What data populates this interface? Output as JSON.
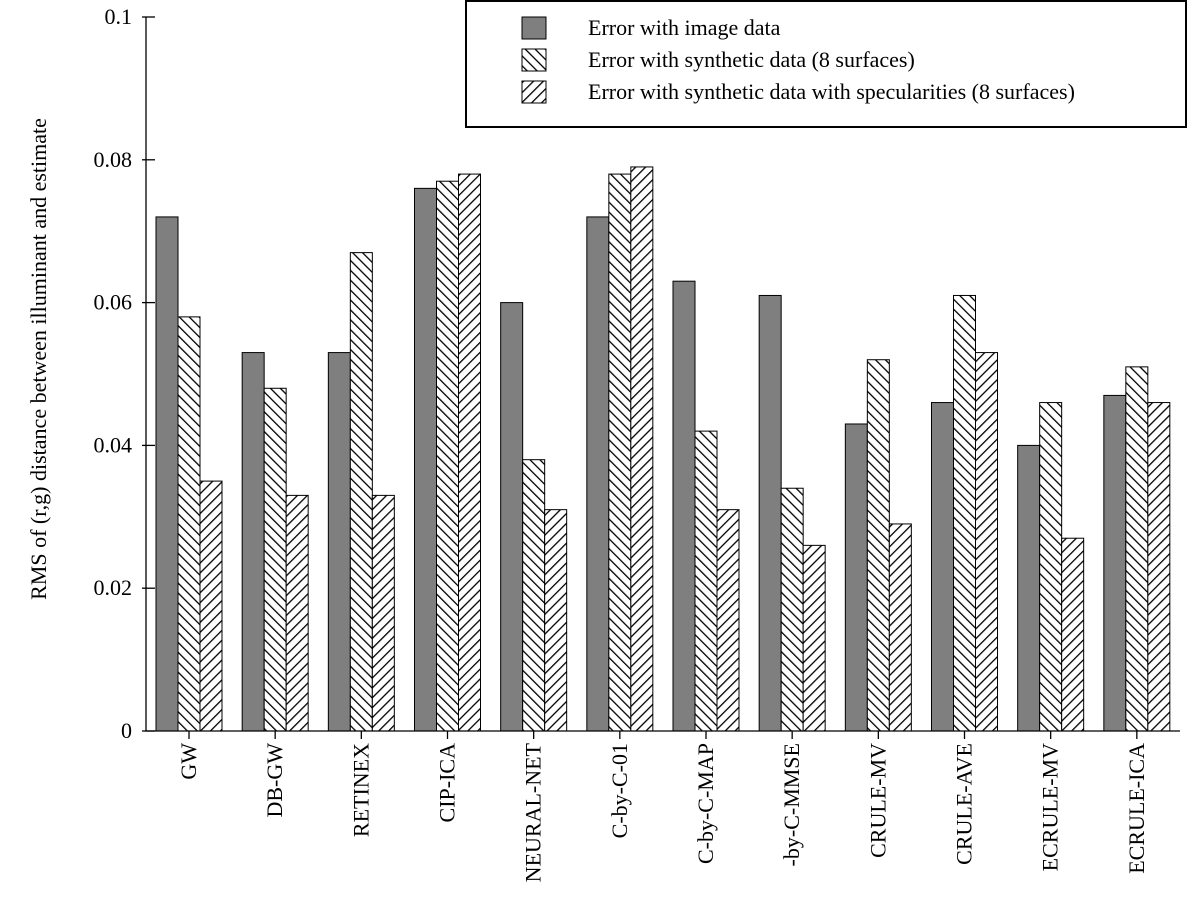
{
  "chart_data": {
    "type": "bar",
    "ylabel": "RMS of (r,g) distance between illuminant and estimate",
    "xlabel": "",
    "ylim": [
      0,
      0.1
    ],
    "yticks": [
      "0",
      "0.02",
      "0.04",
      "0.06",
      "0.08",
      "0.1"
    ],
    "categories": [
      "GW",
      "DB-GW",
      "RETINEX",
      "CIP-ICA",
      "NEURAL-NET",
      "C-by-C-01",
      "C-by-C-MAP",
      "-by-C-MMSE",
      "CRULE-MV",
      "CRULE-AVE",
      "ECRULE-MV",
      "ECRULE-ICA"
    ],
    "series": [
      {
        "name": "Error with image data",
        "fill": "solid-gray",
        "values": [
          0.072,
          0.053,
          0.053,
          0.076,
          0.06,
          0.072,
          0.063,
          0.061,
          0.043,
          0.046,
          0.04,
          0.047
        ]
      },
      {
        "name": "Error with synthetic data (8 surfaces)",
        "fill": "hatch-back-diagonal",
        "values": [
          0.058,
          0.048,
          0.067,
          0.077,
          0.038,
          0.078,
          0.042,
          0.034,
          0.052,
          0.061,
          0.046,
          0.051
        ]
      },
      {
        "name": "Error with synthetic data with specularities (8 surfaces)",
        "fill": "hatch-forward-diagonal",
        "values": [
          0.035,
          0.033,
          0.033,
          0.078,
          0.031,
          0.079,
          0.031,
          0.026,
          0.029,
          0.053,
          0.027,
          0.046
        ]
      }
    ],
    "legend_position": "top-right",
    "grid": false,
    "colors": {
      "solid": "#7f7f7f",
      "hatch": "#000000",
      "background": "#ffffff"
    }
  }
}
